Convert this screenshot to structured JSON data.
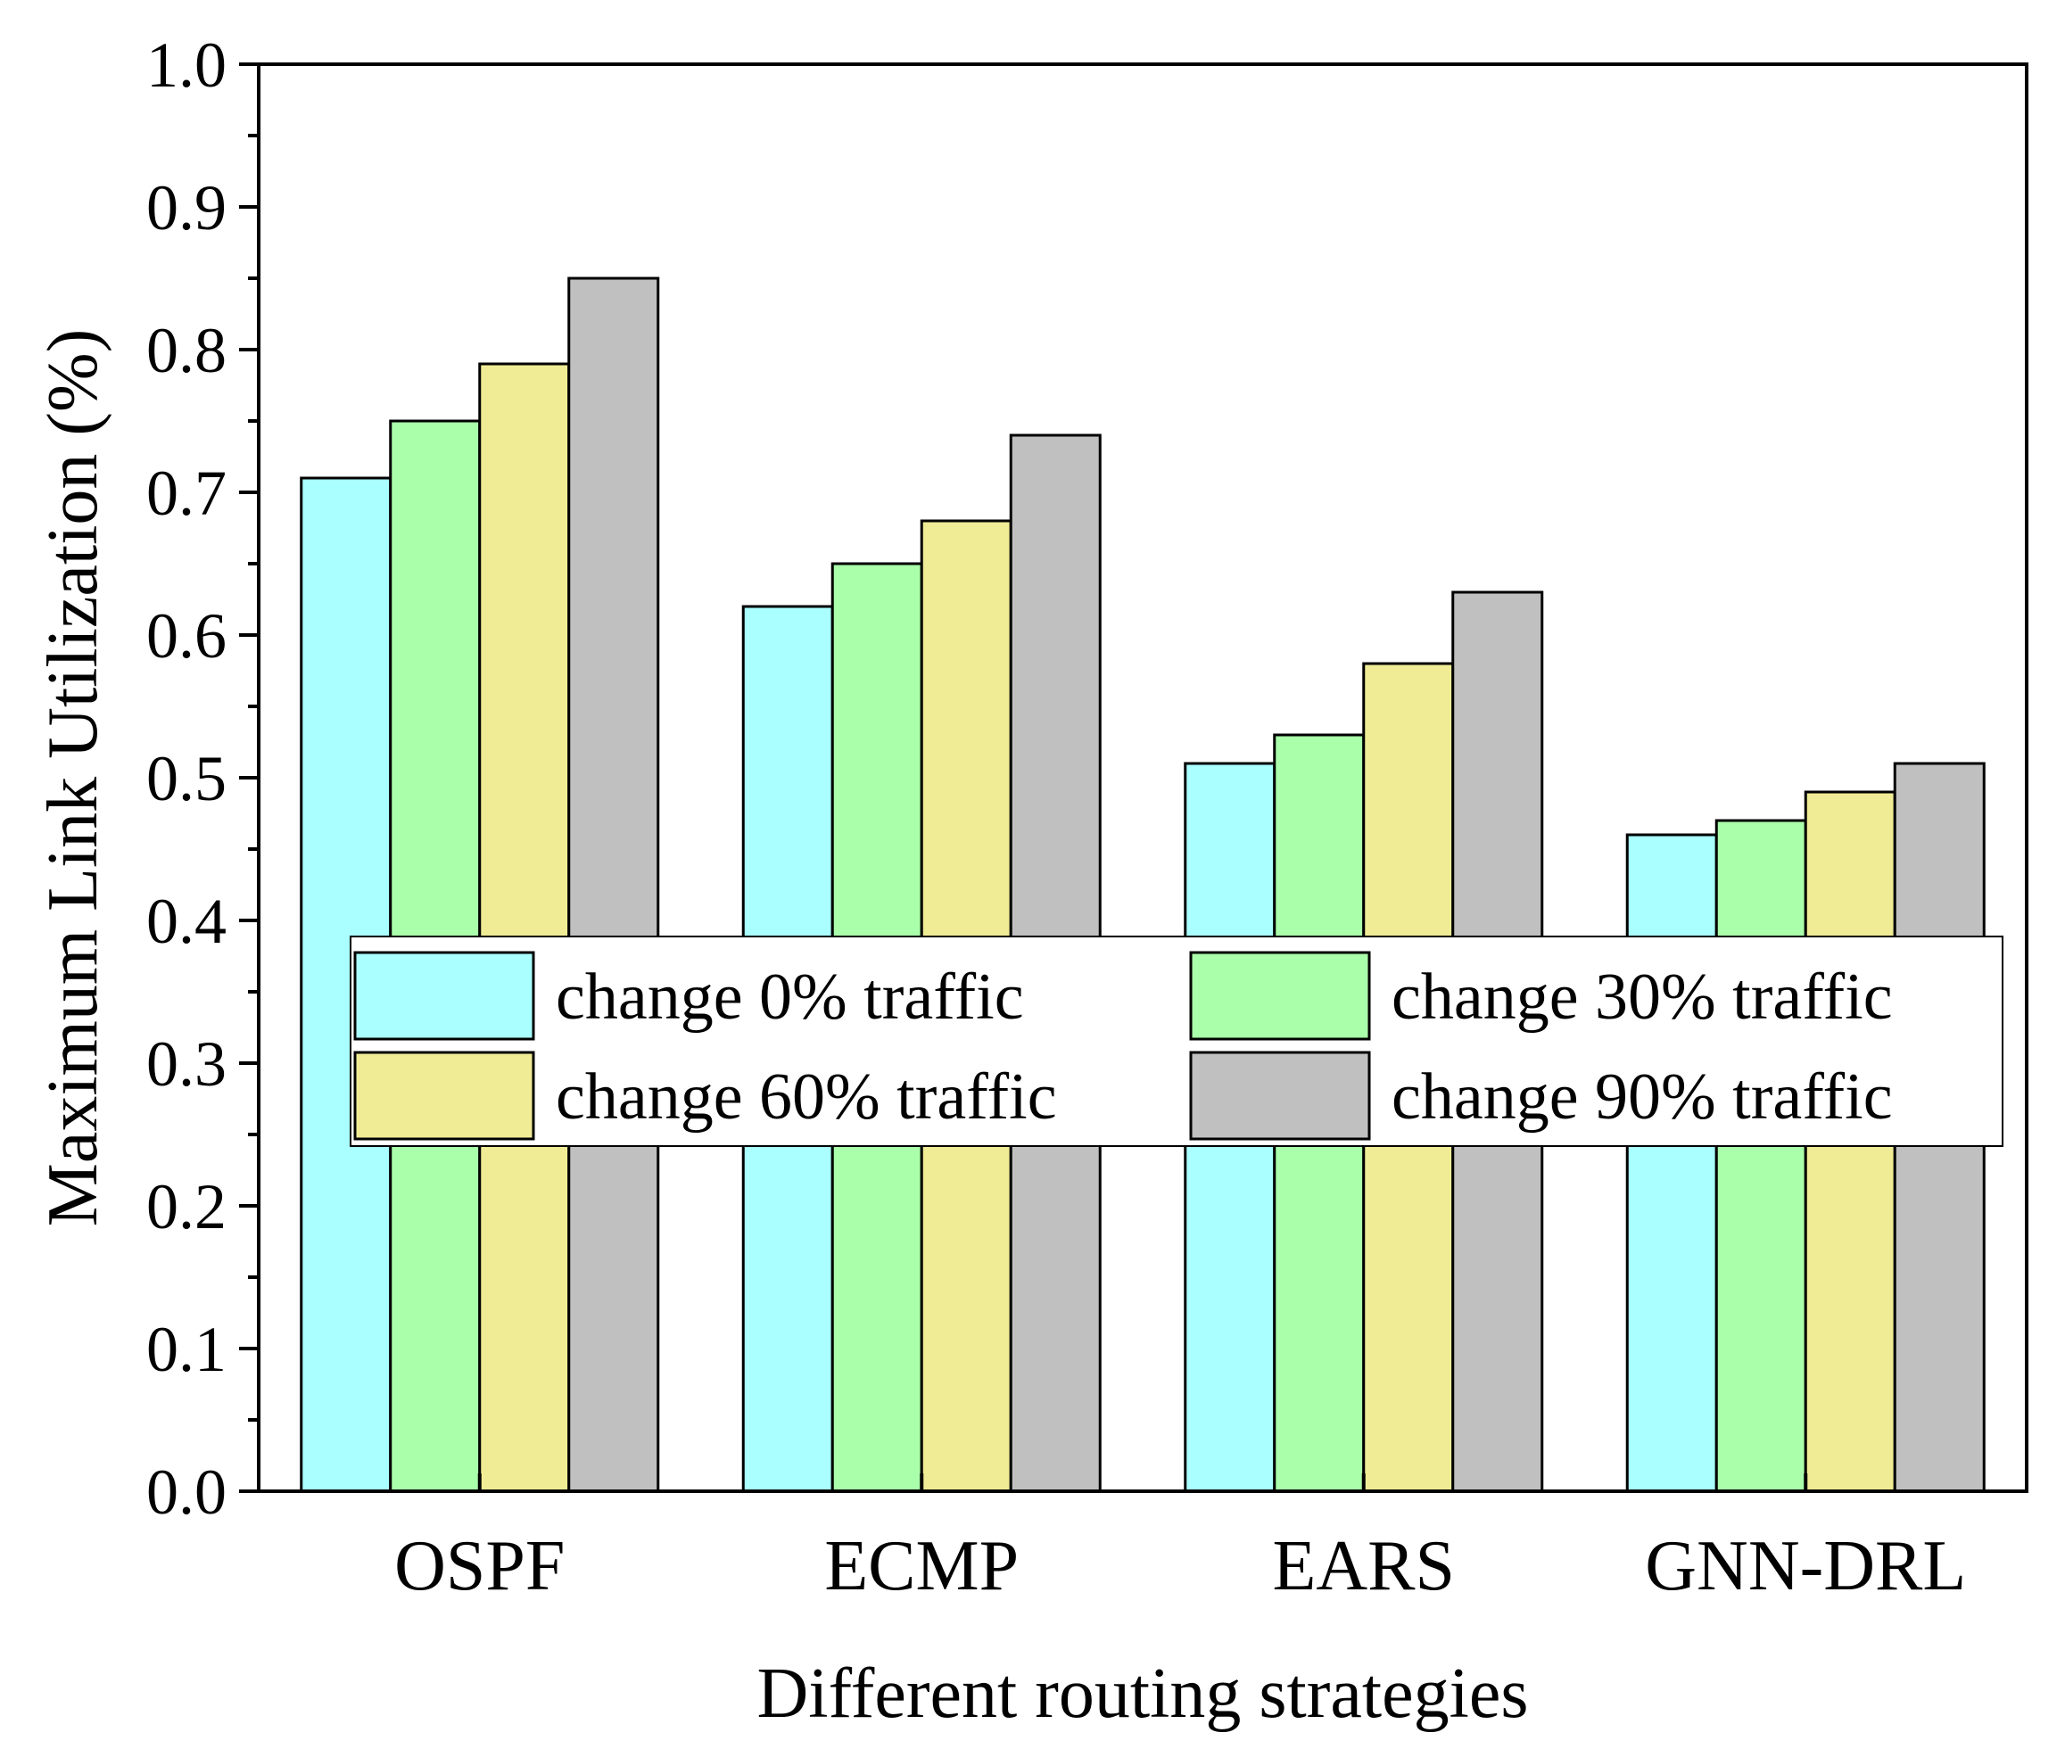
{
  "chart_data": {
    "type": "bar",
    "title": "",
    "xlabel": "Different routing strategies",
    "ylabel": "Maximum Link Utilization (%)",
    "ylim": [
      0.0,
      1.0
    ],
    "yticks": [
      "0.0",
      "0.1",
      "0.2",
      "0.3",
      "0.4",
      "0.5",
      "0.6",
      "0.7",
      "0.8",
      "0.9",
      "1.0"
    ],
    "categories": [
      "OSPF",
      "ECMP",
      "EARS",
      "GNN-DRL"
    ],
    "series": [
      {
        "name": "change 0% traffic",
        "color": "#AAFFFF",
        "values": [
          0.71,
          0.62,
          0.51,
          0.46
        ]
      },
      {
        "name": "change 30% traffic",
        "color": "#AAFFAA",
        "values": [
          0.75,
          0.65,
          0.53,
          0.47
        ]
      },
      {
        "name": "change 60% traffic",
        "color": "#F0EC96",
        "values": [
          0.79,
          0.68,
          0.58,
          0.49
        ]
      },
      {
        "name": "change 90% traffic",
        "color": "#C0C0C0",
        "values": [
          0.85,
          0.74,
          0.63,
          0.51
        ]
      }
    ],
    "legend_position": "lower-center",
    "grid": false
  }
}
